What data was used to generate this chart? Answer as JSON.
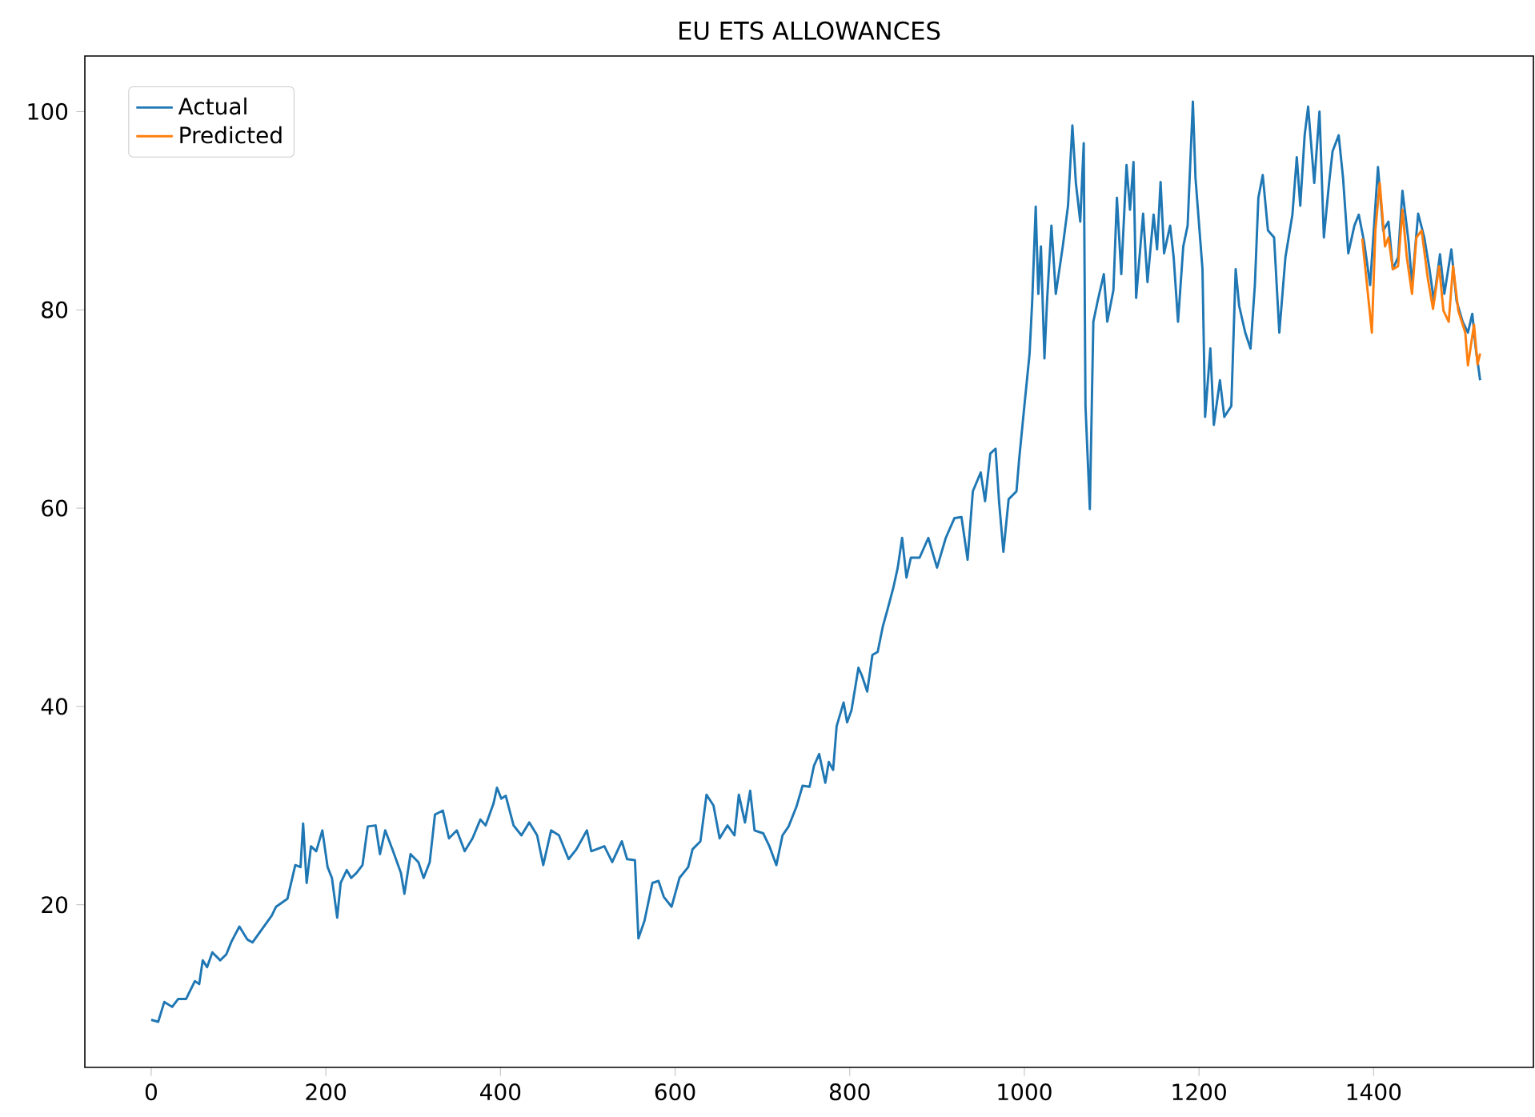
{
  "chart_data": {
    "type": "line",
    "title": "EU ETS ALLOWANCES",
    "xlim": [
      -76,
      1583
    ],
    "ylim": [
      3.6,
      105.6
    ],
    "xticks": [
      0,
      200,
      400,
      600,
      800,
      1000,
      1200,
      1400
    ],
    "yticks": [
      20,
      40,
      60,
      80,
      100
    ],
    "legend": "top left",
    "grid": false,
    "series": [
      {
        "name": "Actual",
        "color": "#1f77b4",
        "x": [
          0,
          8,
          15,
          24,
          31,
          40,
          50,
          55,
          59,
          64,
          70,
          79,
          86,
          92,
          101,
          110,
          116,
          125,
          138,
          143,
          156,
          165,
          171,
          174,
          178,
          183,
          189,
          196,
          202,
          207,
          213,
          217,
          224,
          229,
          235,
          242,
          248,
          257,
          262,
          268,
          277,
          286,
          290,
          297,
          306,
          312,
          319,
          325,
          334,
          341,
          350,
          359,
          368,
          377,
          383,
          392,
          396,
          401,
          406,
          415,
          424,
          433,
          442,
          449,
          458,
          467,
          478,
          487,
          499,
          504,
          510,
          519,
          528,
          539,
          545,
          554,
          558,
          565,
          574,
          581,
          587,
          596,
          605,
          615,
          620,
          629,
          636,
          644,
          651,
          660,
          668,
          673,
          680,
          686,
          691,
          701,
          708,
          716,
          723,
          730,
          739,
          746,
          754,
          759,
          765,
          772,
          776,
          781,
          785,
          793,
          797,
          802,
          810,
          814,
          820,
          826,
          832,
          838,
          844,
          850,
          855,
          860,
          865,
          870,
          880,
          890,
          900,
          910,
          920,
          928,
          935,
          941,
          950,
          955,
          961,
          967,
          971,
          976,
          982,
          991,
          994,
          1000,
          1006,
          1009,
          1013,
          1016,
          1019,
          1023,
          1026,
          1031,
          1036,
          1044,
          1050,
          1055,
          1059,
          1064,
          1068,
          1070,
          1075,
          1079,
          1084,
          1091,
          1095,
          1102,
          1106,
          1111,
          1117,
          1121,
          1125,
          1128,
          1136,
          1141,
          1148,
          1152,
          1156,
          1160,
          1167,
          1171,
          1176,
          1182,
          1187,
          1193,
          1196,
          1204,
          1207,
          1213,
          1217,
          1224,
          1229,
          1237,
          1242,
          1246,
          1253,
          1259,
          1264,
          1268,
          1273,
          1279,
          1286,
          1292,
          1299,
          1307,
          1312,
          1316,
          1321,
          1325,
          1332,
          1338,
          1343,
          1349,
          1353,
          1360,
          1365,
          1371,
          1378,
          1383,
          1389,
          1396,
          1405,
          1411,
          1417,
          1422,
          1428,
          1433,
          1440,
          1444,
          1451,
          1458,
          1464,
          1469,
          1476,
          1481,
          1489,
          1495,
          1502,
          1508,
          1513,
          1517,
          1522
        ],
        "values": [
          8.4,
          8.2,
          10.2,
          9.7,
          10.5,
          10.5,
          12.3,
          12.0,
          14.4,
          13.7,
          15.2,
          14.4,
          15.0,
          16.3,
          17.8,
          16.5,
          16.2,
          17.3,
          18.9,
          19.8,
          20.6,
          24.0,
          23.8,
          28.2,
          22.2,
          25.9,
          25.4,
          27.5,
          23.8,
          22.7,
          18.7,
          22.2,
          23.5,
          22.7,
          23.2,
          24.0,
          27.9,
          28.0,
          25.1,
          27.5,
          25.4,
          23.2,
          21.1,
          25.1,
          24.3,
          22.7,
          24.3,
          29.1,
          29.5,
          26.7,
          27.5,
          25.4,
          26.7,
          28.6,
          28.0,
          30.2,
          31.8,
          30.7,
          31.0,
          28.0,
          27.0,
          28.3,
          27.0,
          24.0,
          27.5,
          27.0,
          24.6,
          25.6,
          27.5,
          25.4,
          25.6,
          25.9,
          24.3,
          26.4,
          24.6,
          24.5,
          16.6,
          18.4,
          22.2,
          22.4,
          20.8,
          19.8,
          22.7,
          23.8,
          25.6,
          26.4,
          31.1,
          30.0,
          26.7,
          28.0,
          27.0,
          31.1,
          28.3,
          31.5,
          27.5,
          27.2,
          25.9,
          24.0,
          27.0,
          27.9,
          29.9,
          32.0,
          31.9,
          34.0,
          35.2,
          32.3,
          34.4,
          33.6,
          38.0,
          40.4,
          38.4,
          39.6,
          43.9,
          43.1,
          41.5,
          45.2,
          45.5,
          48.1,
          50.0,
          52.0,
          54.0,
          57.0,
          53.0,
          55.0,
          55.0,
          57.0,
          54.0,
          57.0,
          59.0,
          59.1,
          54.8,
          61.7,
          63.6,
          60.7,
          65.5,
          66.0,
          60.7,
          55.6,
          60.9,
          61.7,
          64.9,
          70.3,
          75.6,
          80.9,
          90.4,
          81.6,
          86.4,
          75.1,
          80.9,
          88.5,
          81.6,
          86.4,
          90.5,
          98.6,
          92.8,
          88.9,
          96.8,
          70.3,
          59.9,
          78.8,
          80.9,
          83.6,
          78.8,
          82.0,
          91.3,
          83.6,
          94.6,
          90.1,
          94.9,
          81.2,
          89.7,
          82.8,
          89.6,
          86.1,
          92.9,
          85.7,
          88.5,
          85.3,
          78.8,
          86.4,
          88.5,
          101.0,
          93.3,
          84.1,
          69.2,
          76.1,
          68.4,
          72.9,
          69.2,
          70.3,
          84.1,
          80.4,
          77.7,
          76.1,
          82.5,
          91.3,
          93.6,
          88.0,
          87.3,
          77.7,
          85.3,
          89.6,
          95.4,
          90.5,
          97.6,
          100.5,
          92.8,
          100.0,
          87.3,
          92.8,
          96.0,
          97.6,
          93.3,
          85.7,
          88.5,
          89.6,
          86.9,
          82.5,
          94.4,
          88.0,
          88.9,
          84.1,
          85.3,
          92.0,
          86.9,
          82.5,
          89.7,
          87.3,
          84.1,
          80.9,
          85.6,
          81.6,
          86.1,
          80.9,
          78.8,
          77.7,
          79.6,
          76.1,
          72.9
        ]
      },
      {
        "name": "Predicted",
        "color": "#ff7f0e",
        "x": [
          1387,
          1393,
          1398,
          1402,
          1407,
          1413,
          1417,
          1422,
          1428,
          1433,
          1438,
          1444,
          1449,
          1455,
          1462,
          1468,
          1475,
          1480,
          1486,
          1491,
          1497,
          1505,
          1508,
          1515,
          1519,
          1522
        ],
        "values": [
          87.2,
          82.0,
          77.7,
          88.0,
          92.8,
          86.4,
          87.3,
          84.1,
          84.4,
          90.1,
          85.3,
          81.6,
          87.3,
          88.0,
          83.2,
          80.1,
          84.4,
          79.9,
          78.8,
          84.4,
          79.9,
          77.7,
          74.4,
          78.5,
          74.5,
          75.6
        ]
      }
    ]
  }
}
